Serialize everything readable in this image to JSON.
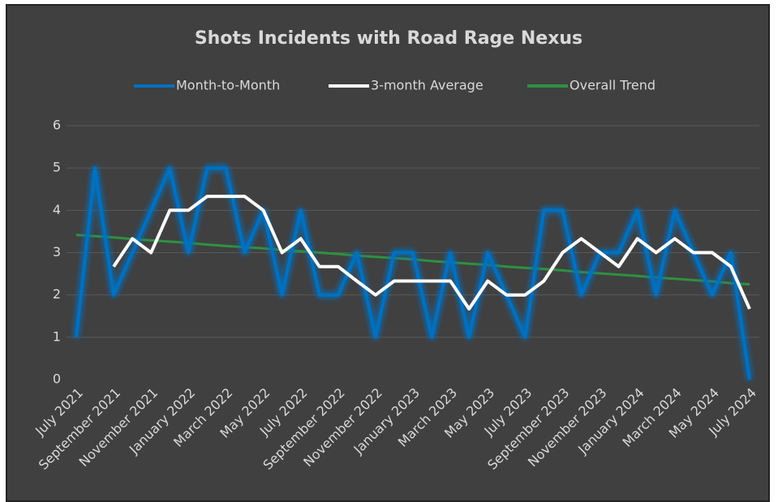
{
  "chart_data": {
    "type": "line",
    "title": "Shots Incidents with Road Rage Nexus",
    "categories": [
      "July 2021",
      null,
      "September 2021",
      null,
      "November 2021",
      null,
      "January 2022",
      null,
      "March 2022",
      null,
      "May 2022",
      null,
      "July 2022",
      null,
      "September 2022",
      null,
      "November 2022",
      null,
      "January 2023",
      null,
      "March 2023",
      null,
      "May 2023",
      null,
      "July 2023",
      null,
      "September 2023",
      null,
      "November 2023",
      null,
      "January 2024",
      null,
      "March 2024",
      null,
      "May 2024",
      null,
      "July 2024"
    ],
    "series": [
      {
        "name": "Month-to-Month",
        "color": "#0070c0",
        "values": [
          1,
          5,
          2,
          3,
          4,
          5,
          3,
          5,
          5,
          3,
          4,
          2,
          4,
          2,
          2,
          3,
          1,
          3,
          3,
          1,
          3,
          1,
          3,
          2,
          1,
          4,
          4,
          2,
          3,
          3,
          4,
          2,
          4,
          3,
          2,
          3,
          0
        ]
      },
      {
        "name": "3-month Average",
        "color": "#ffffff",
        "values": [
          null,
          null,
          2.67,
          3.33,
          3,
          4,
          4,
          4.33,
          4.33,
          4.33,
          4,
          3,
          3.33,
          2.67,
          2.67,
          2.33,
          2,
          2.33,
          2.33,
          2.33,
          2.33,
          1.67,
          2.33,
          2,
          2,
          2.33,
          3,
          3.33,
          3,
          2.67,
          3.33,
          3,
          3.33,
          3,
          3,
          2.67,
          1.67
        ]
      },
      {
        "name": "Overall Trend",
        "color": "#2e9140",
        "values": [
          3.42,
          3.39,
          3.36,
          3.32,
          3.29,
          3.26,
          3.23,
          3.19,
          3.16,
          3.13,
          3.1,
          3.06,
          3.03,
          3.0,
          2.97,
          2.93,
          2.9,
          2.87,
          2.84,
          2.8,
          2.77,
          2.74,
          2.71,
          2.67,
          2.64,
          2.61,
          2.58,
          2.54,
          2.51,
          2.48,
          2.45,
          2.41,
          2.38,
          2.35,
          2.32,
          2.28,
          2.25
        ]
      }
    ],
    "ylim": [
      0,
      6
    ],
    "yticks": [
      0,
      1,
      2,
      3,
      4,
      5,
      6
    ],
    "grid": true,
    "legend": "top"
  }
}
